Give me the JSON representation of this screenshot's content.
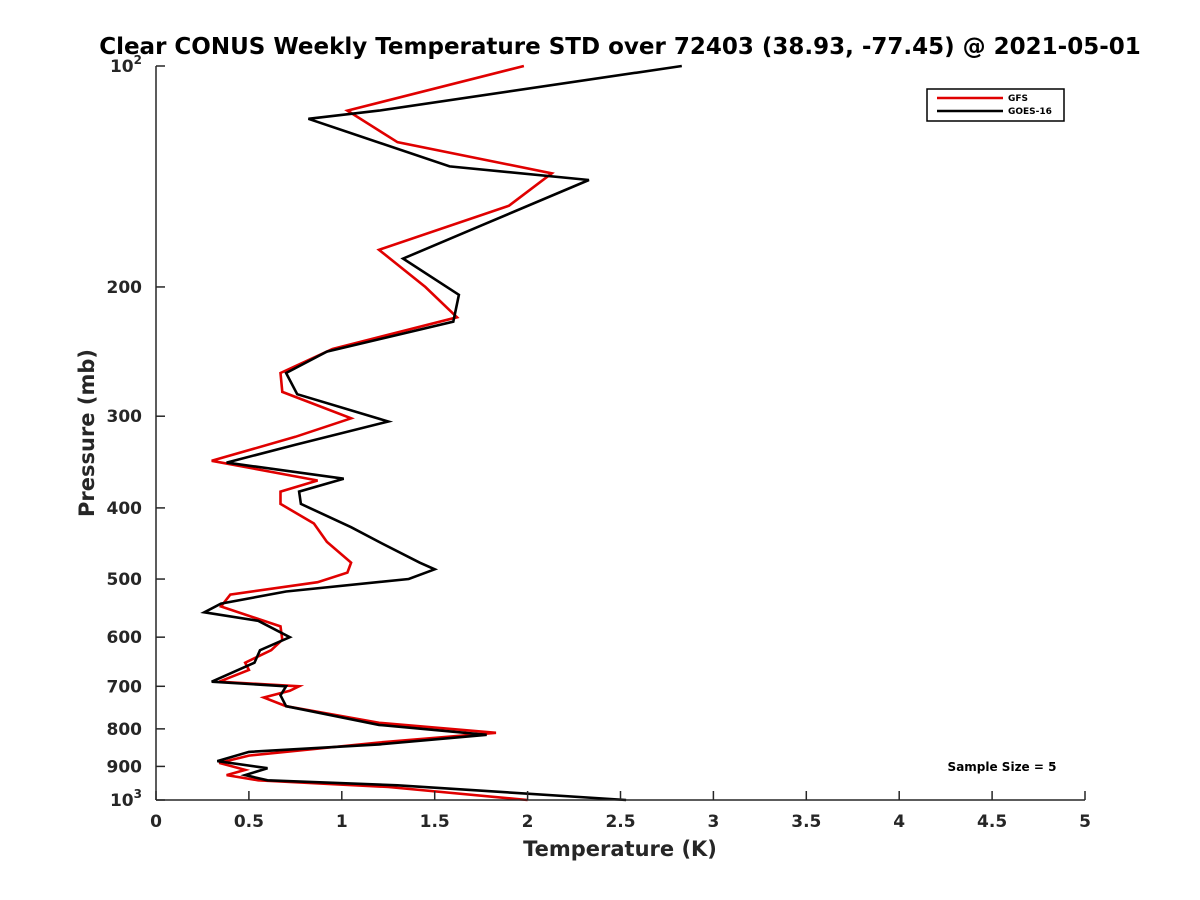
{
  "chart_data": {
    "type": "line",
    "title": "Clear CONUS Weekly Temperature STD over 72403 (38.93, -77.45) @ 2021-05-01",
    "xlabel": "Temperature (K)",
    "ylabel": "Pressure (mb)",
    "xlim": [
      0,
      5
    ],
    "ylim": [
      100,
      1000
    ],
    "y_scale": "log",
    "y_reversed": true,
    "x_ticks": [
      "0",
      "0.5",
      "1",
      "1.5",
      "2",
      "2.5",
      "3",
      "3.5",
      "4",
      "4.5",
      "5"
    ],
    "y_ticks": [
      {
        "value": 100,
        "label": "10",
        "exp": "2"
      },
      {
        "value": 200,
        "label": "200",
        "exp": ""
      },
      {
        "value": 300,
        "label": "300",
        "exp": ""
      },
      {
        "value": 400,
        "label": "400",
        "exp": ""
      },
      {
        "value": 500,
        "label": "500",
        "exp": ""
      },
      {
        "value": 600,
        "label": "600",
        "exp": ""
      },
      {
        "value": 700,
        "label": "700",
        "exp": ""
      },
      {
        "value": 800,
        "label": "800",
        "exp": ""
      },
      {
        "value": 900,
        "label": "900",
        "exp": ""
      },
      {
        "value": 1000,
        "label": "10",
        "exp": "3"
      }
    ],
    "grid": false,
    "legend_position": "top-right",
    "annotation": "Sample Size = 5",
    "series": [
      {
        "name": "GFS",
        "color": "#e00000",
        "points": [
          [
            1.98,
            100
          ],
          [
            1.03,
            115
          ],
          [
            1.3,
            127
          ],
          [
            2.13,
            140
          ],
          [
            1.9,
            155
          ],
          [
            1.2,
            178
          ],
          [
            1.45,
            200
          ],
          [
            1.62,
            220
          ],
          [
            0.95,
            243
          ],
          [
            0.67,
            262
          ],
          [
            0.68,
            278
          ],
          [
            1.05,
            302
          ],
          [
            0.75,
            320
          ],
          [
            0.3,
            345
          ],
          [
            0.87,
            367
          ],
          [
            0.67,
            380
          ],
          [
            0.67,
            395
          ],
          [
            0.85,
            420
          ],
          [
            0.92,
            445
          ],
          [
            1.05,
            475
          ],
          [
            1.03,
            490
          ],
          [
            0.87,
            505
          ],
          [
            0.4,
            525
          ],
          [
            0.35,
            545
          ],
          [
            0.67,
            580
          ],
          [
            0.68,
            605
          ],
          [
            0.62,
            625
          ],
          [
            0.48,
            650
          ],
          [
            0.5,
            665
          ],
          [
            0.34,
            690
          ],
          [
            0.77,
            700
          ],
          [
            0.72,
            710
          ],
          [
            0.58,
            725
          ],
          [
            0.7,
            745
          ],
          [
            1.2,
            785
          ],
          [
            1.83,
            810
          ],
          [
            1.2,
            835
          ],
          [
            0.5,
            870
          ],
          [
            0.34,
            890
          ],
          [
            0.48,
            910
          ],
          [
            0.38,
            925
          ],
          [
            0.55,
            940
          ],
          [
            1.25,
            960
          ],
          [
            2.0,
            1000
          ]
        ]
      },
      {
        "name": "GOES-16",
        "color": "#000000",
        "points": [
          [
            2.83,
            100
          ],
          [
            1.2,
            115
          ],
          [
            0.82,
            118
          ],
          [
            1.58,
            137
          ],
          [
            2.33,
            143
          ],
          [
            1.75,
            165
          ],
          [
            1.33,
            183
          ],
          [
            1.63,
            205
          ],
          [
            1.6,
            223
          ],
          [
            0.92,
            245
          ],
          [
            0.7,
            262
          ],
          [
            0.76,
            280
          ],
          [
            1.25,
            305
          ],
          [
            0.75,
            328
          ],
          [
            0.38,
            347
          ],
          [
            1.01,
            365
          ],
          [
            0.77,
            380
          ],
          [
            0.78,
            395
          ],
          [
            1.05,
            425
          ],
          [
            1.2,
            445
          ],
          [
            1.42,
            475
          ],
          [
            1.5,
            485
          ],
          [
            1.36,
            500
          ],
          [
            0.7,
            520
          ],
          [
            0.35,
            540
          ],
          [
            0.26,
            555
          ],
          [
            0.55,
            570
          ],
          [
            0.72,
            600
          ],
          [
            0.56,
            625
          ],
          [
            0.53,
            650
          ],
          [
            0.3,
            690
          ],
          [
            0.7,
            700
          ],
          [
            0.67,
            720
          ],
          [
            0.7,
            745
          ],
          [
            1.2,
            790
          ],
          [
            1.78,
            815
          ],
          [
            1.2,
            840
          ],
          [
            0.5,
            860
          ],
          [
            0.33,
            885
          ],
          [
            0.6,
            905
          ],
          [
            0.48,
            925
          ],
          [
            0.6,
            940
          ],
          [
            1.3,
            955
          ],
          [
            2.53,
            1000
          ]
        ]
      }
    ]
  }
}
